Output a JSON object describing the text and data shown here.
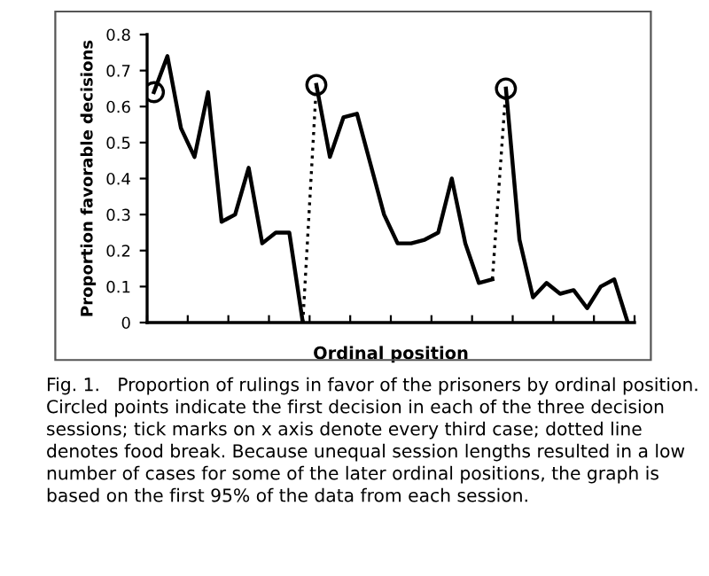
{
  "chart_data": {
    "type": "line",
    "xlabel": "Ordinal position",
    "ylabel": "Proportion favorable decisions",
    "categories": [
      null,
      null,
      null,
      null,
      null,
      null,
      null,
      null,
      null,
      null,
      null,
      null,
      null,
      null,
      null,
      null,
      null,
      null,
      null,
      null,
      null,
      null,
      null,
      null,
      null,
      null,
      null,
      null,
      null,
      null,
      null,
      null,
      null,
      null,
      null,
      null
    ],
    "series": [
      {
        "color": "#000000",
        "line_style": "solid",
        "marker": "none",
        "values": [
          0.64,
          0.74,
          0.54,
          0.46,
          0.64,
          0.28,
          0.3,
          0.43,
          0.22,
          0.25,
          0.25,
          0,
          null,
          null,
          null,
          null,
          null,
          null,
          null,
          null,
          null,
          null,
          null,
          null,
          null,
          null,
          null,
          null,
          null,
          null,
          null,
          null,
          null,
          null,
          null,
          null
        ]
      },
      {
        "color": "#000000",
        "line_style": "dotted",
        "marker": "none",
        "values": [
          null,
          null,
          null,
          null,
          null,
          null,
          null,
          null,
          null,
          null,
          null,
          0,
          0.66,
          null,
          null,
          null,
          null,
          null,
          null,
          null,
          null,
          null,
          null,
          null,
          null,
          null,
          null,
          null,
          null,
          null,
          null,
          null,
          null,
          null,
          null,
          null
        ]
      },
      {
        "color": "#000000",
        "line_style": "solid",
        "marker": "none",
        "values": [
          null,
          null,
          null,
          null,
          null,
          null,
          null,
          null,
          null,
          null,
          null,
          null,
          0.66,
          0.46,
          0.57,
          0.58,
          0.44,
          0.3,
          0.22,
          0.22,
          0.23,
          0.25,
          0.4,
          0.22,
          0.11,
          0.12,
          null,
          null,
          null,
          null,
          null,
          null,
          null,
          null,
          null,
          null
        ]
      },
      {
        "color": "#000000",
        "line_style": "dotted",
        "marker": "none",
        "values": [
          null,
          null,
          null,
          null,
          null,
          null,
          null,
          null,
          null,
          null,
          null,
          null,
          null,
          null,
          null,
          null,
          null,
          null,
          null,
          null,
          null,
          null,
          null,
          null,
          null,
          0.12,
          0.65,
          null,
          null,
          null,
          null,
          null,
          null,
          null,
          null,
          null
        ]
      },
      {
        "color": "#000000",
        "line_style": "solid",
        "marker": "none",
        "values": [
          null,
          null,
          null,
          null,
          null,
          null,
          null,
          null,
          null,
          null,
          null,
          null,
          null,
          null,
          null,
          null,
          null,
          null,
          null,
          null,
          null,
          null,
          null,
          null,
          null,
          null,
          0.65,
          0.23,
          0.07,
          0.11,
          0.08,
          0.09,
          0.04,
          0.1,
          0.12,
          0
        ]
      },
      {
        "type": "scatter",
        "color": "#000000",
        "marker": "circle",
        "values": [
          0.64,
          null,
          null,
          null,
          null,
          null,
          null,
          null,
          null,
          null,
          null,
          null,
          0.66,
          null,
          null,
          null,
          null,
          null,
          null,
          null,
          null,
          null,
          null,
          null,
          null,
          null,
          0.65,
          null,
          null,
          null,
          null,
          null,
          null,
          null,
          null,
          null
        ]
      }
    ],
    "ylim": [
      0,
      0.8
    ],
    "yticks": [
      0,
      0.1,
      0.2,
      0.3,
      0.4,
      0.5,
      0.6,
      0.7,
      0.8
    ],
    "grid": false,
    "legend": false,
    "annotations": [
      "Fig. 1.   Proportion of rulings in favor of the prisoners by ordinal position. Circled points indicate the first decision in each of the three decision sessions; tick marks on x axis denote every third case; dotted line denotes food break. Because unequal session lengths resulted in a low number of cases for some of the later ordinal positions, the graph is based on the first 95% of the data from each session."
    ]
  }
}
